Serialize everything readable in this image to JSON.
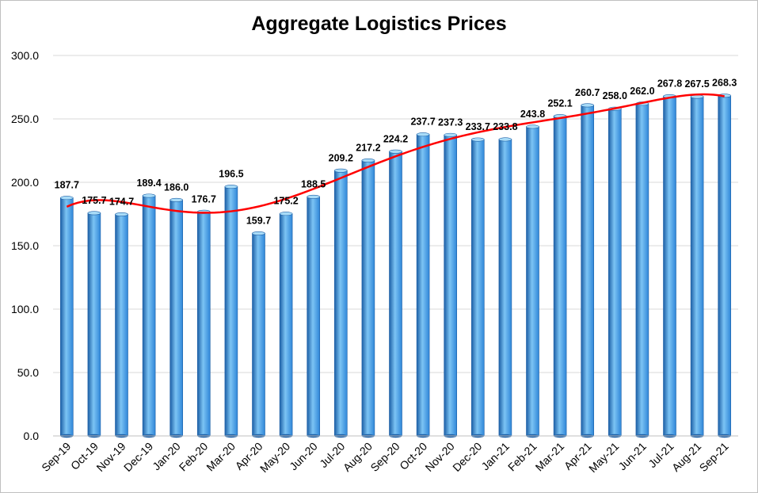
{
  "chart_data": {
    "type": "bar",
    "title": "Aggregate Logistics Prices",
    "xlabel": "",
    "ylabel": "",
    "ylim": [
      0,
      300
    ],
    "yticks": [
      "0.0",
      "50.0",
      "100.0",
      "150.0",
      "200.0",
      "250.0",
      "300.0"
    ],
    "grid": true,
    "legend": "none",
    "categories": [
      "Sep-19",
      "Oct-19",
      "Nov-19",
      "Dec-19",
      "Jan-20",
      "Feb-20",
      "Mar-20",
      "Apr-20",
      "May-20",
      "Jun-20",
      "Jul-20",
      "Aug-20",
      "Sep-20",
      "Oct-20",
      "Nov-20",
      "Dec-20",
      "Jan-21",
      "Feb-21",
      "Mar-21",
      "Apr-21",
      "May-21",
      "Jun-21",
      "Jul-21",
      "Aug-21",
      "Sep-21"
    ],
    "values": [
      187.7,
      175.7,
      174.7,
      189.4,
      186.0,
      176.7,
      196.5,
      159.7,
      175.2,
      188.5,
      209.2,
      217.2,
      224.2,
      237.7,
      237.3,
      233.7,
      233.8,
      243.8,
      252.1,
      260.7,
      258.0,
      262.0,
      267.8,
      267.5,
      268.3
    ],
    "data_labels": [
      "187.7",
      "175.7",
      "174.7",
      "189.4",
      "186.0",
      "176.7",
      "196.5",
      "159.7",
      "175.2",
      "188.5",
      "209.2",
      "217.2",
      "224.2",
      "237.7",
      "237.3",
      "233.7",
      "233.8",
      "243.8",
      "252.1",
      "260.7",
      "258.0",
      "262.0",
      "267.8",
      "267.5",
      "268.3"
    ],
    "trendline": {
      "type": "polynomial",
      "color": "#ff0000"
    },
    "colors": {
      "bar": "#2f86d8",
      "bar_light": "#7cc4f4",
      "bar_dark": "#1c5fa6",
      "trend": "#ff0000",
      "grid": "#d9d9d9"
    }
  }
}
